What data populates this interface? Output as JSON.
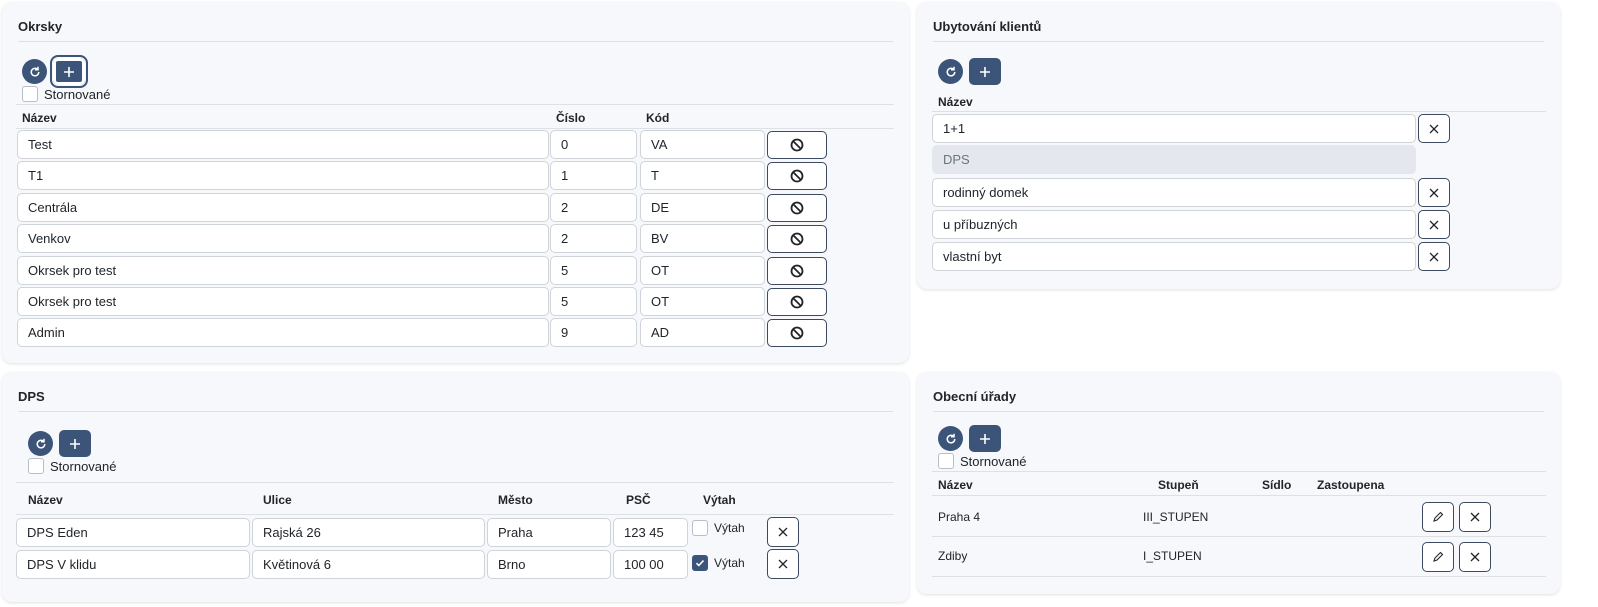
{
  "okrsky": {
    "title": "Okrsky",
    "refresh_icon": "refresh-icon",
    "add_icon": "plus-icon",
    "stornovane_label": "Stornované",
    "headers": {
      "nazev": "Název",
      "cislo": "Číslo",
      "kod": "Kód"
    },
    "rows": [
      {
        "nazev": "Test",
        "cislo": "0",
        "kod": "VA"
      },
      {
        "nazev": "T1",
        "cislo": "1",
        "kod": "T"
      },
      {
        "nazev": "Centrála",
        "cislo": "2",
        "kod": "DE"
      },
      {
        "nazev": "Venkov",
        "cislo": "2",
        "kod": "BV"
      },
      {
        "nazev": "Okrsek pro test",
        "cislo": "5",
        "kod": "OT"
      },
      {
        "nazev": "Okrsek pro test",
        "cislo": "5",
        "kod": "OT"
      },
      {
        "nazev": "Admin",
        "cislo": "9",
        "kod": "AD"
      }
    ]
  },
  "ubytovani": {
    "title": "Ubytování klientů",
    "headers": {
      "nazev": "Název"
    },
    "rows": [
      {
        "nazev": "1+1",
        "disabled": false
      },
      {
        "nazev": "DPS",
        "disabled": true
      },
      {
        "nazev": "rodinný domek",
        "disabled": false
      },
      {
        "nazev": "u příbuzných",
        "disabled": false
      },
      {
        "nazev": "vlastní byt",
        "disabled": false
      }
    ]
  },
  "dps": {
    "title": "DPS",
    "stornovane_label": "Stornované",
    "headers": {
      "nazev": "Název",
      "ulice": "Ulice",
      "mesto": "Město",
      "psc": "PSČ",
      "vytah": "Výtah"
    },
    "rows": [
      {
        "nazev": "DPS Eden",
        "ulice": "Rajská 26",
        "mesto": "Praha",
        "psc": "123 45",
        "vytah_label": "Výtah",
        "vytah": false
      },
      {
        "nazev": "DPS V klidu",
        "ulice": "Květinová 6",
        "mesto": "Brno",
        "psc": "100 00",
        "vytah_label": "Výtah",
        "vytah": true
      }
    ]
  },
  "obecni": {
    "title": "Obecní úřady",
    "stornovane_label": "Stornované",
    "headers": {
      "nazev": "Název",
      "stupen": "Stupeň",
      "sidlo": "Sídlo",
      "zastoupena": "Zastoupena"
    },
    "rows": [
      {
        "nazev": "Praha 4",
        "stupen": "III_STUPEN",
        "sidlo": "",
        "zastoupena": ""
      },
      {
        "nazev": "Zdiby",
        "stupen": "I_STUPEN",
        "sidlo": "",
        "zastoupena": ""
      }
    ]
  },
  "colors": {
    "accent": "#3b5478",
    "panel_bg": "#f6f8fb",
    "border": "#ced4da"
  }
}
